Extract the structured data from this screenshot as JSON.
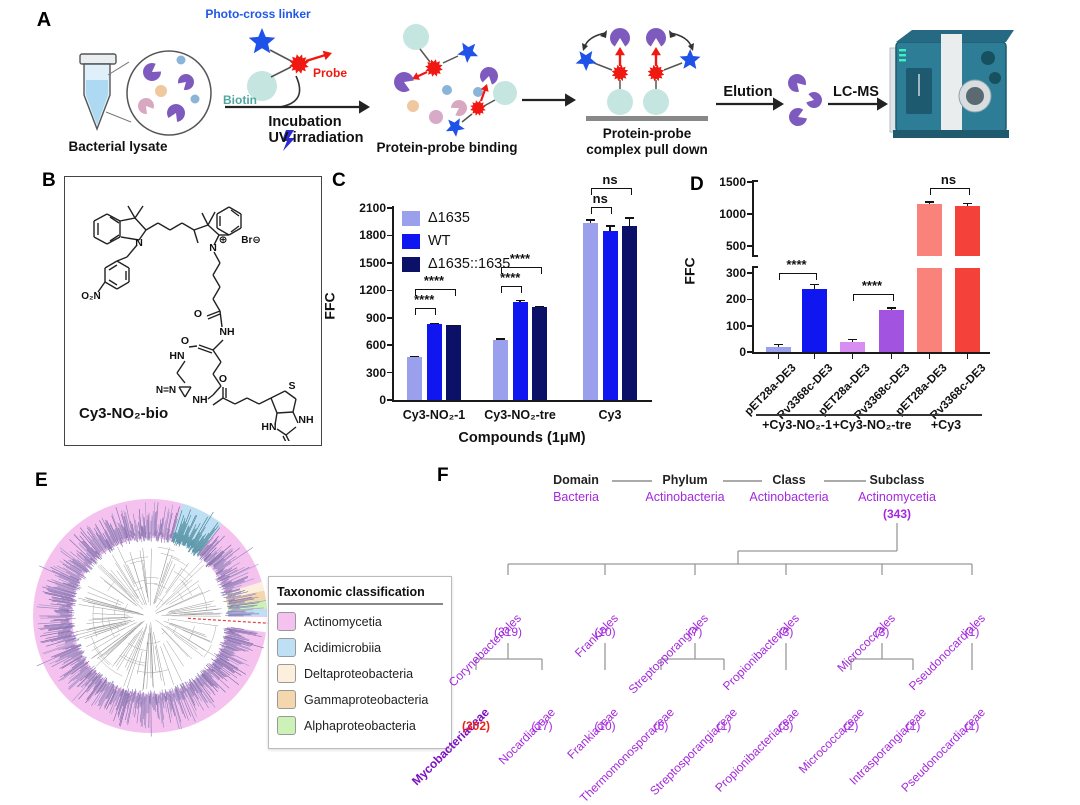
{
  "panel_labels": {
    "a": "A",
    "b": "B",
    "c": "C",
    "d": "D",
    "e": "E",
    "f": "F"
  },
  "panel_a": {
    "lysate_caption": "Bacterial lysate",
    "linker_label": "Photo-cross linker",
    "biotin_label": "Biotin",
    "probe_label": "Probe",
    "arrow1_line1": "Incubation",
    "arrow1_line2": "UV irradiation",
    "binding_caption": "Protein-probe binding",
    "pulldown_caption_line1": "Protein-probe",
    "pulldown_caption_line2": "complex pull down",
    "elution_label": "Elution",
    "lcms_label": "LC-MS",
    "colors": {
      "linker_text": "#1f58e8",
      "biotin_text": "#4fa8a0",
      "probe_text": "#f01810"
    }
  },
  "panel_b": {
    "compound_name": "Cy3-NO₂-bio",
    "atom_labels": [
      "O₂N",
      "N",
      "⊕",
      "N",
      "Br⊖",
      "O",
      "NH",
      "O",
      "HN",
      "N=N",
      "NH",
      "O",
      "S",
      "NH",
      "HN",
      "O"
    ]
  },
  "panel_e": {
    "legend_title": "Taxonomic classification",
    "legend_items": [
      {
        "label": "Actinomycetia",
        "color": "#f5c2ef"
      },
      {
        "label": "Acidimicrobiia",
        "color": "#bfdff5"
      },
      {
        "label": "Deltaproteobacteria",
        "color": "#fcefdc"
      },
      {
        "label": "Gammaproteobacteria",
        "color": "#f5d7ae"
      },
      {
        "label": "Alphaproteobacteria",
        "color": "#ccf2b8"
      }
    ]
  },
  "panel_f": {
    "rank_headers": [
      "Domain",
      "Phylum",
      "Class",
      "Subclass"
    ],
    "rank_values": [
      "Bacteria",
      "Actinobacteria",
      "Actinobacteria",
      "Actinomycetia"
    ],
    "subclass_count": "(343)",
    "text_color": "#a428dc",
    "highlight_text_color": "#7a10c0",
    "highlight_count_color": "#e8231c",
    "orders": [
      {
        "name": "Corynebacteriales",
        "count": "(319)",
        "families": [
          {
            "name": "Mycobacteriaceae",
            "count": "(302)",
            "highlight": true
          },
          {
            "name": "Nocardiaceae",
            "count": "(17)"
          }
        ]
      },
      {
        "name": "Frankiales",
        "count": "(10)",
        "families": [
          {
            "name": "Frankiaceae",
            "count": "(10)"
          }
        ]
      },
      {
        "name": "Streptosporangiales",
        "count": "(7)",
        "families": [
          {
            "name": "Thermomonosporaceae",
            "count": "(6)"
          },
          {
            "name": "Streptosporangiaceae",
            "count": "(1)"
          }
        ]
      },
      {
        "name": "Propionibacteriales",
        "count": "(3)",
        "families": [
          {
            "name": "Propionibacteriaceae",
            "count": "(3)"
          }
        ]
      },
      {
        "name": "Micrococcales",
        "count": "(3)",
        "families": [
          {
            "name": "Micrococcaceae",
            "count": "(2)"
          },
          {
            "name": "Intrasporangiaceae",
            "count": "(1)"
          }
        ]
      },
      {
        "name": "Pseudonocardiales",
        "count": "(1)",
        "families": [
          {
            "name": "Pseudonocardiaceae",
            "count": "(1)"
          }
        ]
      }
    ]
  },
  "chart_data": [
    {
      "type": "bar",
      "panel": "C",
      "ylabel": "FFC",
      "xlabel": "Compounds (1μM)",
      "ylim": [
        0,
        2100
      ],
      "yticks": [
        0,
        300,
        600,
        900,
        1200,
        1500,
        1800,
        2100
      ],
      "grid": false,
      "legend_position": "top-left",
      "categories": [
        "Cy3-NO₂-1",
        "Cy3-NO₂-tre",
        "Cy3"
      ],
      "series": [
        {
          "name": "Δ1635",
          "color": "#9aa0ec",
          "values": [
            470,
            660,
            1935
          ],
          "errors": [
            15,
            15,
            40
          ]
        },
        {
          "name": "WT",
          "color": "#1016f0",
          "values": [
            830,
            1075,
            1850
          ],
          "errors": [
            15,
            20,
            60
          ]
        },
        {
          "name": "Δ1635::1635",
          "color": "#0c1168",
          "values": [
            815,
            1020,
            1905
          ],
          "errors": [
            10,
            12,
            95
          ]
        }
      ],
      "significance": [
        {
          "group": 0,
          "from": 0,
          "to": 1,
          "label": "****"
        },
        {
          "group": 0,
          "from": 0,
          "to": 2,
          "label": "****"
        },
        {
          "group": 1,
          "from": 0,
          "to": 1,
          "label": "****"
        },
        {
          "group": 1,
          "from": 0,
          "to": 2,
          "label": "****"
        },
        {
          "group": 2,
          "from": 0,
          "to": 1,
          "label": "ns"
        },
        {
          "group": 2,
          "from": 0,
          "to": 2,
          "label": "ns"
        }
      ]
    },
    {
      "type": "bar",
      "panel": "D",
      "ylabel": "FFC",
      "axis_break": {
        "lower": [
          0,
          300
        ],
        "upper": [
          400,
          1500
        ]
      },
      "yticks_lower": [
        0,
        100,
        200,
        300
      ],
      "yticks_upper": [
        500,
        1000,
        1500
      ],
      "groups": [
        {
          "label": "+Cy3-NO₂-1",
          "bars": [
            {
              "x_label": "pET28a-DE3",
              "value": 20,
              "error": 5,
              "color": "#9aa0ec"
            },
            {
              "x_label": "Rv3368c-DE3",
              "value": 240,
              "error": 18,
              "color": "#1016f0"
            }
          ]
        },
        {
          "label": "+Cy3-NO₂-tre",
          "bars": [
            {
              "x_label": "pET28a-DE3",
              "value": 38,
              "error": 6,
              "color": "#d78df2"
            },
            {
              "x_label": "Rv3368c-DE3",
              "value": 158,
              "error": 6,
              "color": "#a254e0"
            }
          ]
        },
        {
          "label": "+Cy3",
          "bars": [
            {
              "x_label": "pET28a-DE3",
              "value": 1150,
              "error": 35,
              "color": "#f9827a"
            },
            {
              "x_label": "Rv3368c-DE3",
              "value": 1130,
              "error": 20,
              "color": "#f4423b"
            }
          ]
        }
      ],
      "significance": [
        {
          "bars": [
            0,
            1
          ],
          "label": "****"
        },
        {
          "bars": [
            2,
            3
          ],
          "label": "****"
        },
        {
          "bars": [
            4,
            5
          ],
          "label": "ns"
        }
      ]
    }
  ]
}
